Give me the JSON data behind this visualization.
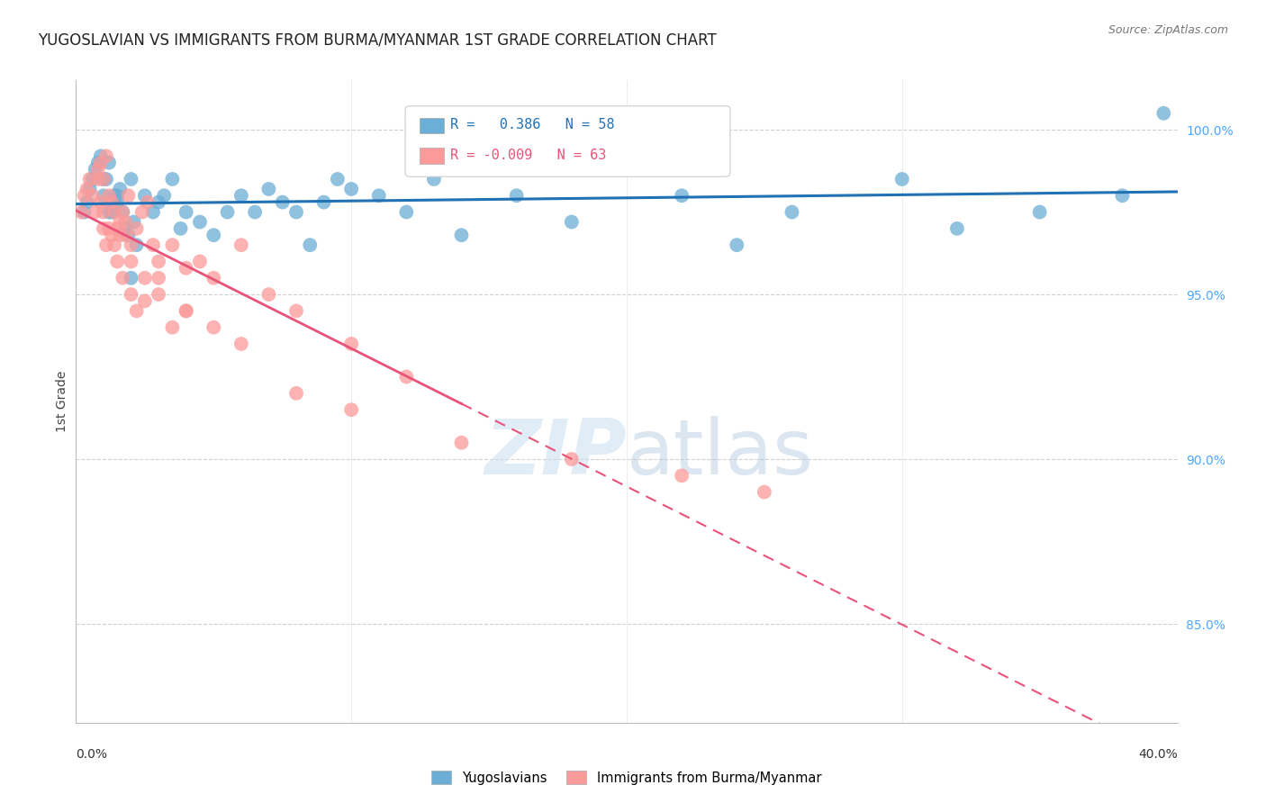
{
  "title": "YUGOSLAVIAN VS IMMIGRANTS FROM BURMA/MYANMAR 1ST GRADE CORRELATION CHART",
  "source": "Source: ZipAtlas.com",
  "ylabel": "1st Grade",
  "right_yticks": [
    100.0,
    95.0,
    90.0,
    85.0
  ],
  "xlim": [
    0.0,
    40.0
  ],
  "ylim": [
    82.0,
    101.5
  ],
  "legend_r_blue": "R =   0.386",
  "legend_n_blue": "N = 58",
  "legend_r_pink": "R = -0.009",
  "legend_n_pink": "N = 63",
  "blue_color": "#6baed6",
  "pink_color": "#fb9a99",
  "blue_line_color": "#2171b5",
  "pink_line_color": "#e9537a",
  "grid_color": "#cccccc",
  "right_axis_color": "#4da6ff",
  "watermark_zip": "ZIP",
  "watermark_atlas": "atlas",
  "blue_x": [
    0.3,
    0.4,
    0.5,
    0.6,
    0.7,
    0.8,
    0.9,
    1.0,
    1.1,
    1.2,
    1.3,
    1.4,
    1.5,
    1.6,
    1.7,
    1.8,
    1.9,
    2.0,
    2.1,
    2.2,
    2.5,
    2.8,
    3.0,
    3.2,
    3.5,
    3.8,
    4.0,
    4.5,
    5.0,
    5.5,
    6.0,
    6.5,
    7.0,
    7.5,
    8.0,
    8.5,
    9.0,
    9.5,
    10.0,
    11.0,
    12.0,
    13.0,
    14.0,
    16.0,
    18.0,
    20.0,
    22.0,
    24.0,
    26.0,
    30.0,
    32.0,
    35.0,
    38.0,
    39.5,
    1.0,
    1.2,
    1.5,
    2.0
  ],
  "blue_y": [
    97.5,
    97.8,
    98.2,
    98.5,
    98.8,
    99.0,
    99.2,
    98.0,
    98.5,
    99.0,
    97.5,
    98.0,
    97.8,
    98.2,
    97.5,
    97.0,
    96.8,
    98.5,
    97.2,
    96.5,
    98.0,
    97.5,
    97.8,
    98.0,
    98.5,
    97.0,
    97.5,
    97.2,
    96.8,
    97.5,
    98.0,
    97.5,
    98.2,
    97.8,
    97.5,
    96.5,
    97.8,
    98.5,
    98.2,
    98.0,
    97.5,
    98.5,
    96.8,
    98.0,
    97.2,
    99.5,
    98.0,
    96.5,
    97.5,
    98.5,
    97.0,
    97.5,
    98.0,
    100.5,
    98.5,
    97.5,
    98.0,
    95.5
  ],
  "pink_x": [
    0.2,
    0.3,
    0.4,
    0.5,
    0.6,
    0.7,
    0.8,
    0.9,
    1.0,
    1.1,
    1.2,
    1.3,
    1.4,
    1.5,
    1.6,
    1.7,
    1.8,
    1.9,
    2.0,
    2.2,
    2.4,
    2.6,
    2.8,
    3.0,
    3.5,
    4.0,
    4.5,
    5.0,
    6.0,
    7.0,
    8.0,
    10.0,
    12.0,
    1.0,
    1.1,
    1.3,
    1.5,
    1.7,
    2.0,
    2.2,
    2.5,
    3.0,
    3.5,
    4.0,
    0.8,
    0.9,
    1.0,
    1.2,
    1.4,
    1.6,
    1.8,
    2.0,
    2.5,
    3.0,
    4.0,
    5.0,
    6.0,
    8.0,
    10.0,
    14.0,
    18.0,
    22.0,
    25.0
  ],
  "pink_y": [
    97.5,
    98.0,
    98.2,
    98.5,
    98.0,
    97.5,
    98.8,
    99.0,
    98.5,
    99.2,
    98.0,
    97.8,
    97.5,
    97.0,
    96.8,
    97.5,
    97.2,
    98.0,
    96.5,
    97.0,
    97.5,
    97.8,
    96.5,
    96.0,
    96.5,
    95.8,
    96.0,
    95.5,
    96.5,
    95.0,
    94.5,
    93.5,
    92.5,
    97.0,
    96.5,
    96.8,
    96.0,
    95.5,
    95.0,
    94.5,
    94.8,
    95.5,
    94.0,
    94.5,
    98.5,
    97.8,
    97.5,
    97.0,
    96.5,
    97.2,
    96.8,
    96.0,
    95.5,
    95.0,
    94.5,
    94.0,
    93.5,
    92.0,
    91.5,
    90.5,
    90.0,
    89.5,
    89.0
  ]
}
